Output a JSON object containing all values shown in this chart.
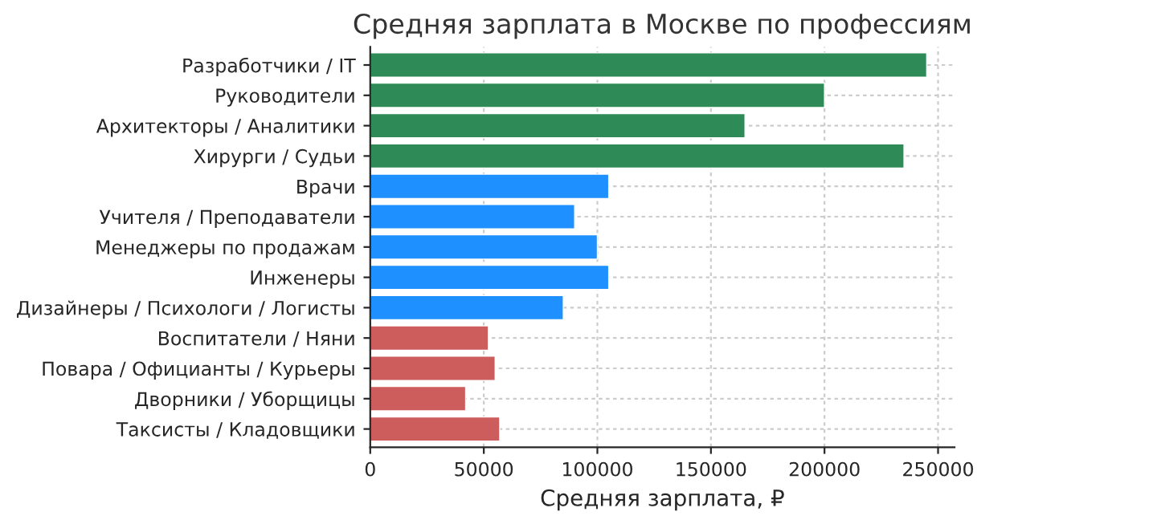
{
  "chart_data": {
    "type": "bar",
    "orientation": "horizontal",
    "title": "Средняя зарплата в Москве по профессиям",
    "xlabel": "Средняя зарплата, ₽",
    "categories": [
      "Разработчики / IT",
      "Руководители",
      "Архитекторы / Аналитики",
      "Хирурги / Судьи",
      "Врачи",
      "Учителя / Преподаватели",
      "Менеджеры по продажам",
      "Инженеры",
      "Дизайнеры / Психологи / Логисты",
      "Воспитатели / Няни",
      "Повара / Официанты / Курьеры",
      "Дворники / Уборщицы",
      "Таксисты / Кладовщики"
    ],
    "values": [
      245000,
      200000,
      165000,
      235000,
      105000,
      90000,
      100000,
      105000,
      85000,
      52000,
      55000,
      42000,
      57000
    ],
    "colors": [
      "#2e8b57",
      "#2e8b57",
      "#2e8b57",
      "#2e8b57",
      "#1e90ff",
      "#1e90ff",
      "#1e90ff",
      "#1e90ff",
      "#1e90ff",
      "#cd5c5c",
      "#cd5c5c",
      "#cd5c5c",
      "#cd5c5c"
    ],
    "xlim": [
      0,
      257250
    ],
    "xticks": [
      0,
      50000,
      100000,
      150000,
      200000,
      250000
    ],
    "grid": true
  }
}
